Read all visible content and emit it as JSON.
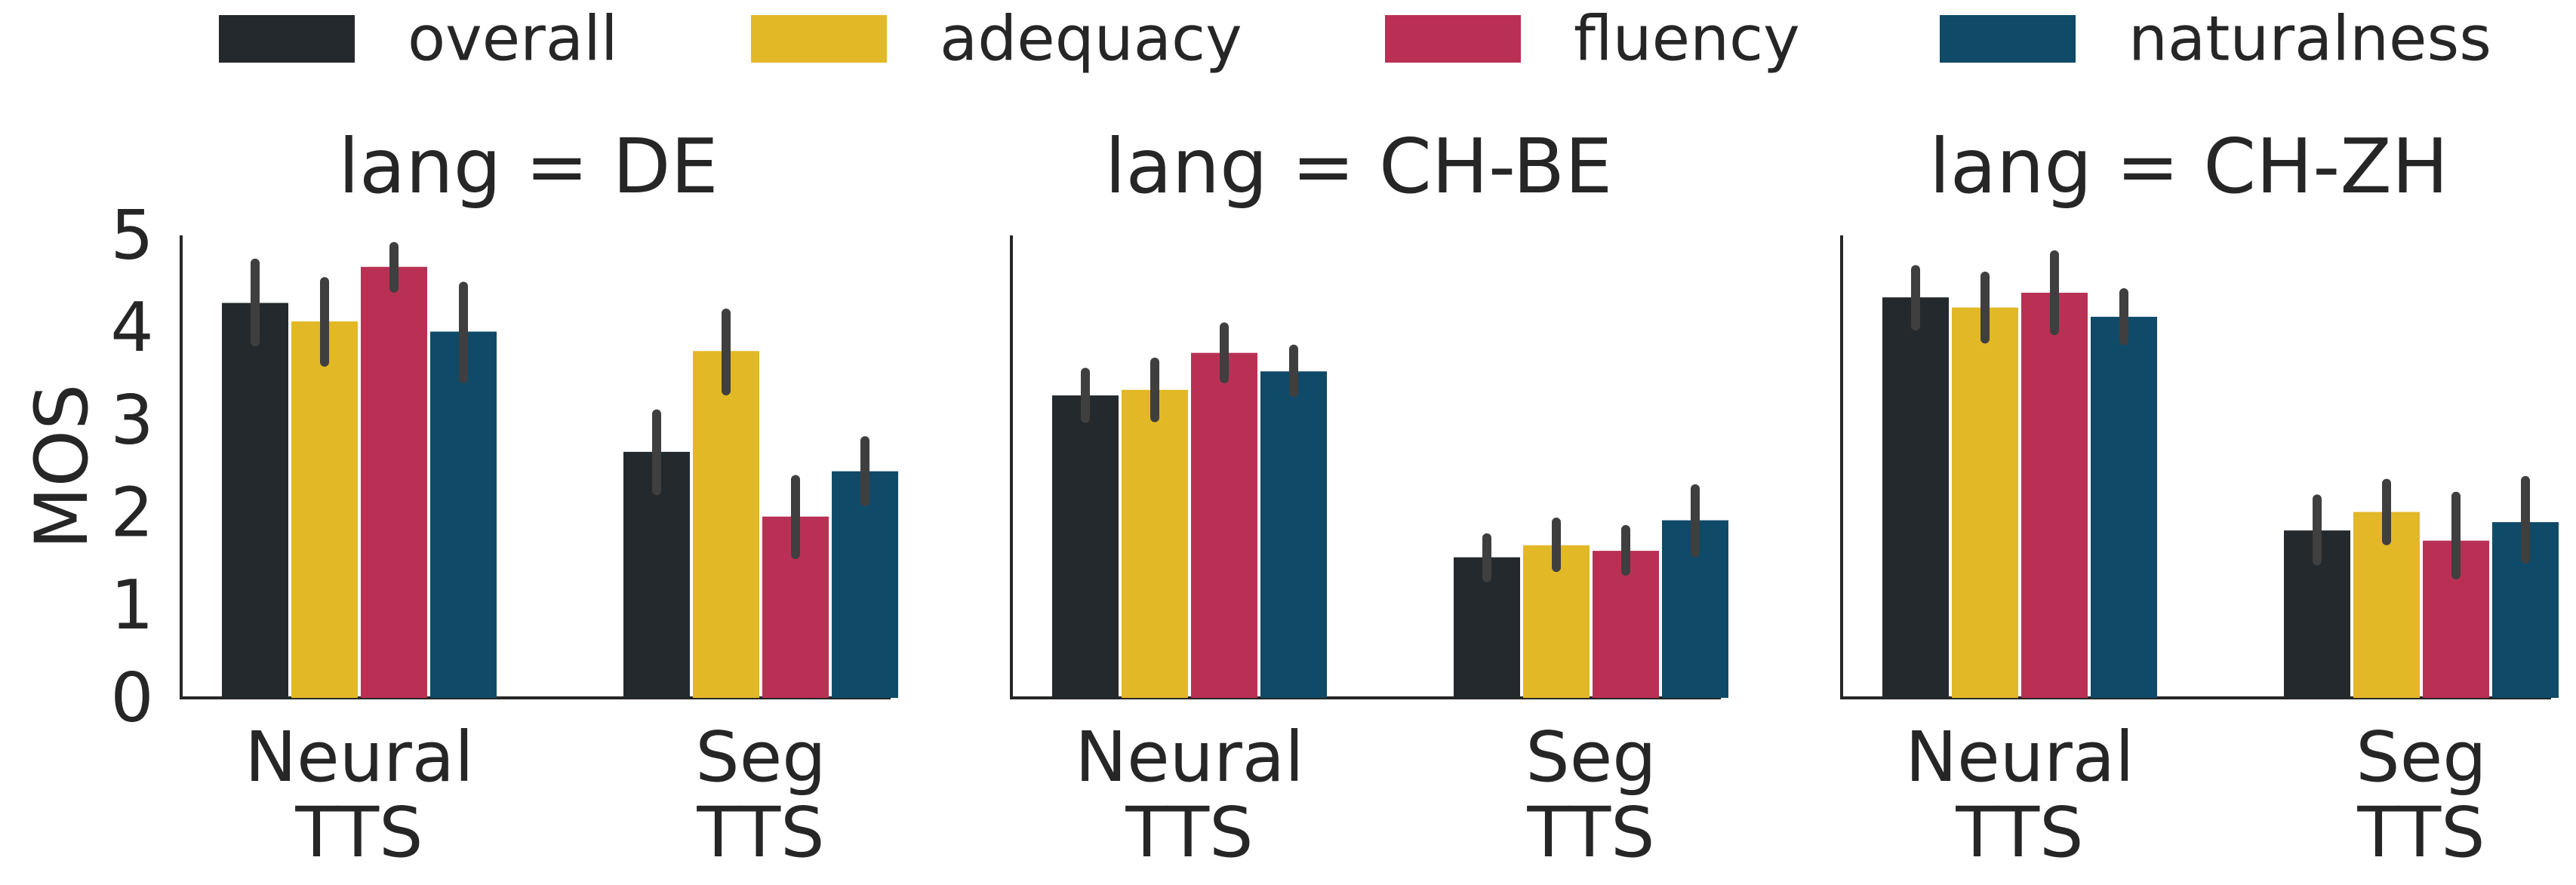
{
  "chart_data": {
    "type": "bar",
    "ylabel": "MOS",
    "ylim": [
      0,
      5
    ],
    "yticks": [
      "0",
      "1",
      "2",
      "3",
      "4",
      "5"
    ],
    "legend": {
      "placement": "top-center",
      "entries": [
        {
          "name": "overall",
          "color": "#23292c"
        },
        {
          "name": "adequacy",
          "color": "#e3b826"
        },
        {
          "name": "fluency",
          "color": "#ba3055"
        },
        {
          "name": "naturalness",
          "color": "#0f4a68"
        }
      ]
    },
    "categories": [
      [
        "Neural",
        "TTS"
      ],
      [
        "Seg",
        "TTS"
      ]
    ],
    "panels": [
      {
        "title": "lang = DE",
        "series": [
          {
            "name": "overall",
            "values": [
              4.27,
              2.66
            ],
            "ci": [
              [
                3.85,
                4.7
              ],
              [
                2.24,
                3.07
              ]
            ]
          },
          {
            "name": "adequacy",
            "values": [
              4.07,
              3.75
            ],
            "ci": [
              [
                3.63,
                4.5
              ],
              [
                3.32,
                4.16
              ]
            ]
          },
          {
            "name": "fluency",
            "values": [
              4.66,
              1.96
            ],
            "ci": [
              [
                4.43,
                4.88
              ],
              [
                1.55,
                2.36
              ]
            ]
          },
          {
            "name": "naturalness",
            "values": [
              3.96,
              2.45
            ],
            "ci": [
              [
                3.45,
                4.45
              ],
              [
                2.12,
                2.78
              ]
            ]
          }
        ]
      },
      {
        "title": "lang = CH-BE",
        "series": [
          {
            "name": "overall",
            "values": [
              3.27,
              1.52
            ],
            "ci": [
              [
                3.02,
                3.52
              ],
              [
                1.3,
                1.73
              ]
            ]
          },
          {
            "name": "adequacy",
            "values": [
              3.33,
              1.65
            ],
            "ci": [
              [
                3.03,
                3.63
              ],
              [
                1.41,
                1.9
              ]
            ]
          },
          {
            "name": "fluency",
            "values": [
              3.73,
              1.59
            ],
            "ci": [
              [
                3.45,
                4.01
              ],
              [
                1.37,
                1.82
              ]
            ]
          },
          {
            "name": "naturalness",
            "values": [
              3.53,
              1.92
            ],
            "ci": [
              [
                3.3,
                3.77
              ],
              [
                1.57,
                2.26
              ]
            ]
          }
        ]
      },
      {
        "title": "lang = CH-ZH",
        "series": [
          {
            "name": "overall",
            "values": [
              4.33,
              1.81
            ],
            "ci": [
              [
                4.02,
                4.63
              ],
              [
                1.48,
                2.15
              ]
            ]
          },
          {
            "name": "adequacy",
            "values": [
              4.22,
              2.01
            ],
            "ci": [
              [
                3.88,
                4.56
              ],
              [
                1.7,
                2.32
              ]
            ]
          },
          {
            "name": "fluency",
            "values": [
              4.38,
              1.7
            ],
            "ci": [
              [
                3.97,
                4.79
              ],
              [
                1.33,
                2.18
              ]
            ]
          },
          {
            "name": "naturalness",
            "values": [
              4.12,
              1.9
            ],
            "ci": [
              [
                3.86,
                4.38
              ],
              [
                1.5,
                2.35
              ]
            ]
          }
        ]
      }
    ]
  }
}
